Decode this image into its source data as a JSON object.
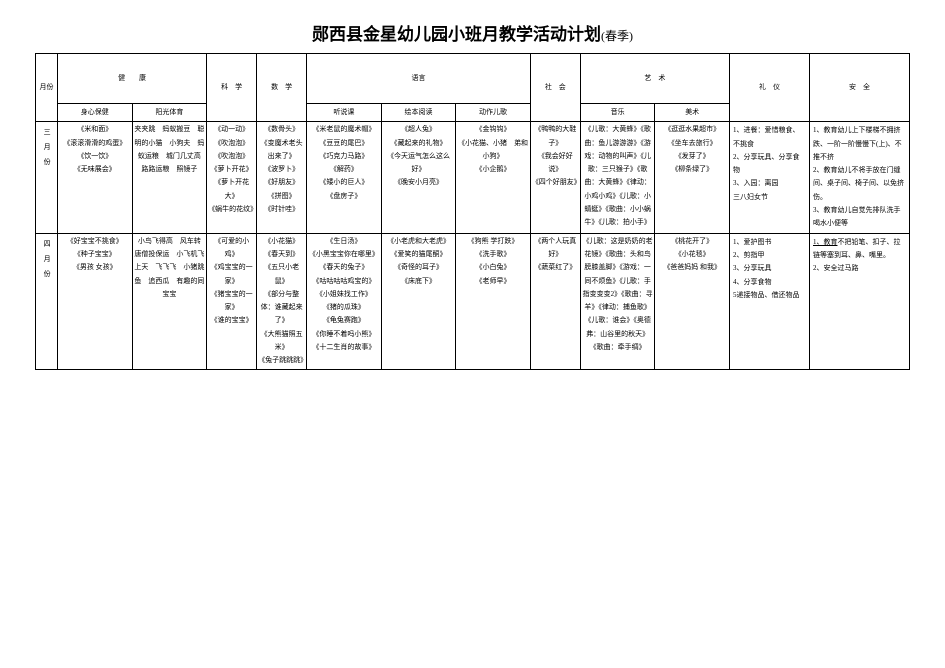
{
  "title": "郧西县金星幼儿园小班月教学活动计划",
  "subtitle": "(春季)",
  "headers": {
    "month": "月份",
    "health": "健　　康",
    "science": "科　学",
    "math": "数　学",
    "language": "语言",
    "social": "社　会",
    "art": "艺　术",
    "etiquette": "礼　仪",
    "safety": "安　全",
    "sub_body": "身心保健",
    "sub_sun": "阳光体育",
    "sub_listen": "听说课",
    "sub_picture": "绘本阅读",
    "sub_action": "动作儿歌",
    "sub_music": "音乐",
    "sub_art": "美术"
  },
  "rows": [
    {
      "month": "三月份",
      "body": "《米和面》\n《滚滚滑滑的鸡蛋》\n《饮一饮》\n《无味展会》",
      "sun": "夹夹跳　蚂蚁搬豆　聪明的小猫　小狗夫　蚂蚁运粮　城门几丈高　路路运粮　照镜子",
      "science": "《动一动》\n《吹泡泡》\n《吹泡泡》\n《萝卜开花》\n《萝卜开花大》\n《蜗牛的花纹》",
      "math": "《数骨头》\n《变魔术老头出来了》\n《波罗卜》\n《好朋友》\n《拼图》\n《时针哇》",
      "listen": "《米老鼠的魔术帽》\n《豆豆的尾巴》\n《巧克力马路》\n《解药》\n《矮小的巨人》\n《盘房子》",
      "picture": "《超人兔》\n《藏起来的礼物》\n《今天运气怎么这么好》\n《晚安小月亮》",
      "action": "《金钩钩》\n《小花猫、小猪　弟和小狗》\n《小企鹅》",
      "social": "《鸭鸭的大鞋子》\n《我会好好说》\n《四个好朋友》",
      "music": "《儿歌：大黄蜂》《歌曲：鱼儿游游游》《游戏：动物的叫声》《儿歌：三只猴子》《歌曲：大黄蜂》《律动：小鸡小鸡》《儿歌：小蜻蜓》《歌曲：小小蜗牛》《儿歌：拍小手》",
      "art2": "《逛逛水果超市》\n《坐车去旅行》\n《发芽了》\n《柳条绿了》",
      "etiquette": "1、进餐：爱惜粮食、不挑食\n2、分享玩具、分享食物\n3、入园：离园\n三八妇女节",
      "safety": "1、教育幼儿上下楼梯不拥挤跌、一阶一阶慢慢下(上)、不推不挤\n2、教育幼儿不将手放在门缝间、桌子间、椅子间、以免挤伤。\n3、教育幼儿自觉先排队洗手喝水小便等"
    },
    {
      "month": "四月份",
      "body": "《好宝宝不挑食》\n《种子宝宝》\n《男孩 女孩》",
      "sun": "小鸟飞得高　风车转　唐僧投保运　小飞机飞上天　飞飞飞　小猪跳鱼　追西瓜　有趣的同宝宝",
      "science": "《可爱的小鸡》\n《鸡宝宝的一家》\n《猪宝宝的一家》\n《谁的宝宝》",
      "math": "《小花猫》\n《春天到》\n《五只小老鼠》\n《部分与整体：谁藏起来了》\n《大熊猫照五米》\n《兔子跳跳跳》",
      "listen": "《生日汤》\n《小黑宝宝你在哪里》\n《春天的兔子》\n《咕咕咕咕鸡宝的》\n《小姐妹找工作》\n《猪的瓜珠》\n《龟兔赛跑》\n《你睡不着吗小熊》\n《十二生肖的故事》",
      "picture": "《小老虎和大老虎》\n《爱笑的猫尾酮》\n《奇怪的耳子》\n《床底下》",
      "action": "《狗熊 学打跌》\n《洗手歌》\n《小白兔》\n《老师早》",
      "social": "《两个人玩真好》\n《蔬菜红了》",
      "music": "《儿歌：这是奶奶的老花镜》《歌曲：头和鸟膀膝盖脚》《游戏：一同不烦鱼》《儿歌：手指变变变2》《歌曲：寻羊》《律动：捕鱼歌》《儿歌：谁会》《奥德弗：山谷里的秋天》《歌曲：牵手绸》",
      "art2": "《桃花开了》\n《小花毯》\n《爸爸妈妈 和我》",
      "etiquette": "1、爱护图书\n2、剪指甲\n3、分享玩具\n4、分享食物\n5递接物品、借还物品",
      "safety": "1、教育不把铅笔、扣子、拉链等塞到耳、鼻、嘴里。\n2、安全过马路"
    }
  ]
}
